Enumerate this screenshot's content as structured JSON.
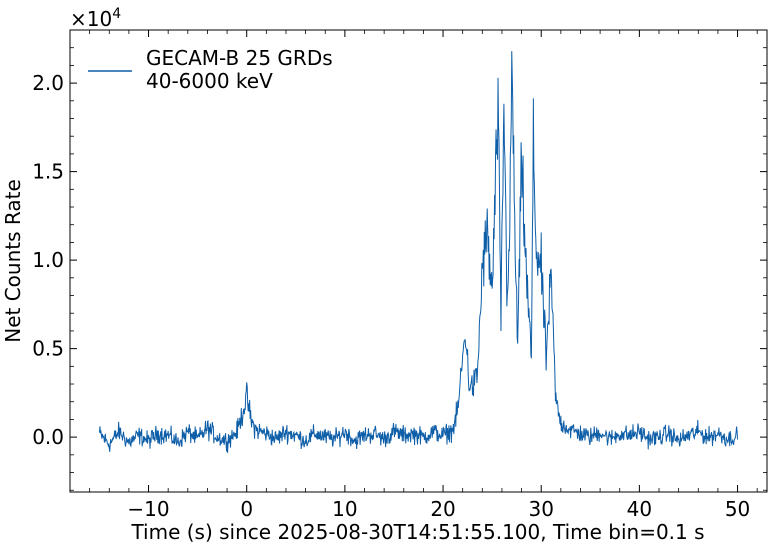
{
  "chart_data": {
    "type": "line",
    "xlabel": "Time (s) since 2025-08-30T14:51:55.100, Time bin=0.1 s",
    "ylabel": "Net Counts Rate",
    "y_multiplier_label": "×10",
    "y_multiplier_exponent": "4",
    "xlim": [
      -18,
      53
    ],
    "ylim": [
      -3100,
      23000
    ],
    "x_ticks": [
      -10,
      0,
      10,
      20,
      30,
      40,
      50
    ],
    "x_tick_labels": [
      "−10",
      "0",
      "10",
      "20",
      "30",
      "40",
      "50"
    ],
    "y_ticks": [
      0,
      5000,
      10000,
      15000,
      20000
    ],
    "y_tick_labels": [
      "0.0",
      "0.5",
      "1.0",
      "1.5",
      "2.0"
    ],
    "grid": false,
    "legend_position": "top-left",
    "time_bin_s": 0.1,
    "series": [
      {
        "name": "GECAM-B 25 GRDs 40-6000 keV",
        "legend_lines": [
          "GECAM-B 25 GRDs",
          "40-6000 keV"
        ],
        "color": "#0e5ea8",
        "x": [
          -15,
          -14,
          -13,
          -12,
          -11,
          -10,
          -9,
          -8,
          -7,
          -6,
          -5,
          -4,
          -3,
          -2,
          -1,
          -0.5,
          0,
          0.5,
          1,
          2,
          3,
          4,
          5,
          6,
          7,
          8,
          9,
          10,
          11,
          12,
          13,
          14,
          15,
          16,
          17,
          18,
          19,
          20,
          21,
          21.5,
          22,
          22.3,
          22.6,
          23,
          23.5,
          24,
          24.5,
          25,
          25.3,
          25.6,
          25.9,
          26.2,
          26.5,
          26.8,
          27,
          27.3,
          27.6,
          28,
          28.5,
          29,
          29.2,
          29.5,
          30,
          30.5,
          31,
          31.5,
          32,
          33,
          34,
          35,
          36,
          37,
          38,
          39,
          40,
          41,
          42,
          43,
          44,
          45,
          46,
          47,
          48,
          49,
          50
        ],
        "y": [
          200,
          -400,
          300,
          -300,
          100,
          -200,
          200,
          100,
          -300,
          300,
          -100,
          500,
          0,
          -200,
          300,
          1200,
          2300,
          800,
          400,
          200,
          -100,
          300,
          100,
          -200,
          200,
          0,
          -100,
          300,
          -200,
          100,
          200,
          -100,
          300,
          100,
          200,
          0,
          300,
          100,
          400,
          1500,
          4500,
          6000,
          3200,
          2800,
          3500,
          9500,
          11500,
          8000,
          13500,
          18500,
          6500,
          19000,
          8500,
          11000,
          21500,
          12000,
          5000,
          15500,
          9000,
          4500,
          16500,
          10500,
          9500,
          4500,
          9000,
          2000,
          800,
          400,
          200,
          0,
          300,
          -100,
          200,
          100,
          300,
          -100,
          0,
          200,
          -200,
          100,
          300,
          0,
          200,
          -100,
          100
        ]
      }
    ]
  }
}
